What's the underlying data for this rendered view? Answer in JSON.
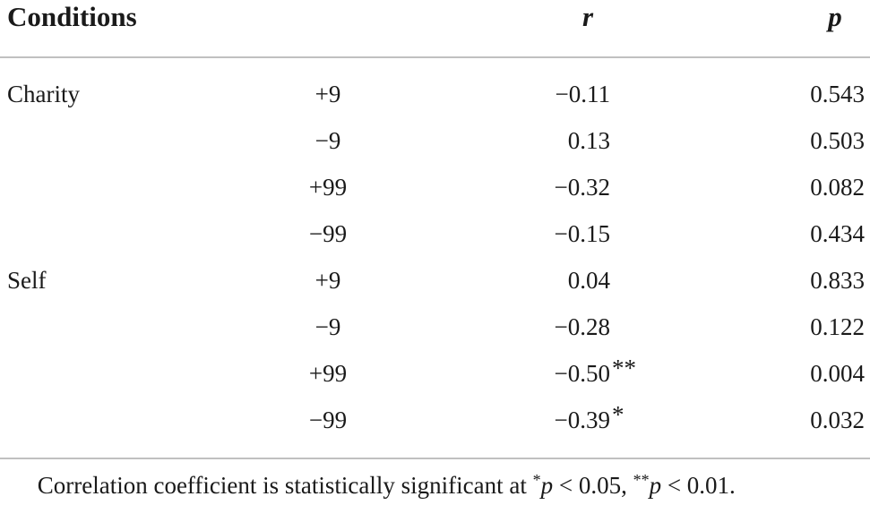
{
  "header": {
    "conditions": "Conditions",
    "r": "r",
    "p": "p"
  },
  "groups": [
    {
      "label": "Charity",
      "rows": [
        {
          "condition": "+9",
          "r": "−0.11",
          "p": "0.543"
        },
        {
          "condition": "−9",
          "r": "0.13",
          "p": "0.503"
        },
        {
          "condition": "+99",
          "r": "−0.32",
          "p": "0.082"
        },
        {
          "condition": "−99",
          "r": "−0.15",
          "p": "0.434"
        }
      ]
    },
    {
      "label": "Self",
      "rows": [
        {
          "condition": "+9",
          "r": "0.04",
          "p": "0.833"
        },
        {
          "condition": "−9",
          "r": "−0.28",
          "p": "0.122"
        },
        {
          "condition": "+99",
          "r": "−0.50",
          "sig": "**",
          "p": "0.004"
        },
        {
          "condition": "−99",
          "r": "−0.39",
          "sig": "*",
          "p": "0.032"
        }
      ]
    }
  ],
  "footnote": [
    "Correlation coefficient is statistically significant at ",
    "*",
    "p",
    " < 0.05, ",
    "**",
    "p",
    " < 0.01."
  ]
}
